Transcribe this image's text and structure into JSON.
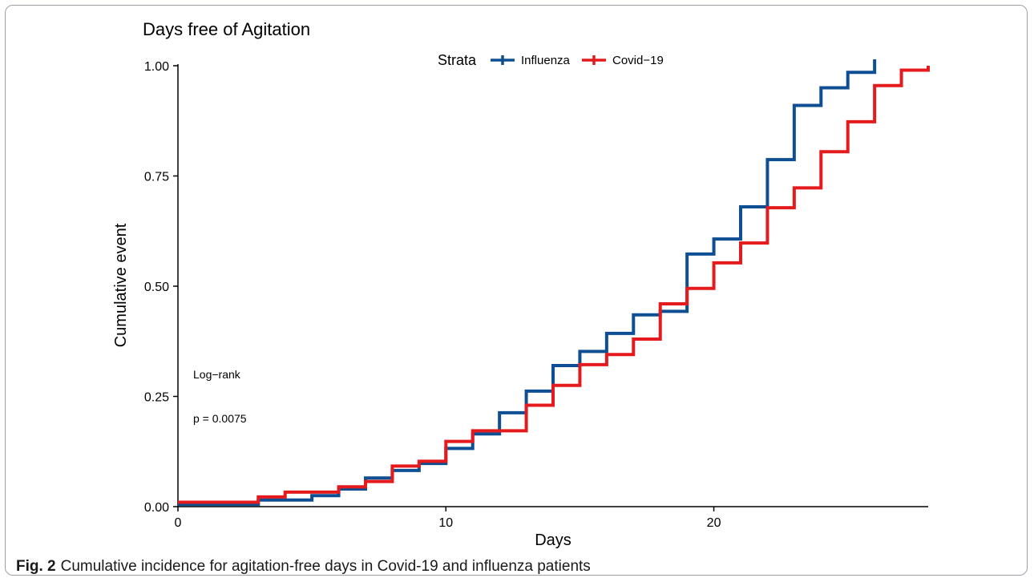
{
  "caption": {
    "label": "Fig. 2",
    "text": "Cumulative incidence for agitation-free days in Covid-19 and influenza patients"
  },
  "chart_data": {
    "type": "line",
    "step": true,
    "title": "Days free of Agitation",
    "xlabel": "Days",
    "ylabel": "Cumulative event",
    "xlim": [
      0,
      28
    ],
    "ylim": [
      0,
      1
    ],
    "x_ticks": [
      0,
      10,
      20
    ],
    "y_ticks": [
      0,
      0.25,
      0.5,
      0.75,
      1.0
    ],
    "y_tick_labels": [
      "0.00",
      "0.25",
      "0.50",
      "0.75",
      "1.00"
    ],
    "grid": false,
    "legend": {
      "title": "Strata",
      "position": "top"
    },
    "annotations": [
      "Log−rank",
      "p = 0.0075"
    ],
    "series": [
      {
        "name": "Influenza",
        "color": "#0e4f94",
        "x": [
          0,
          3,
          5,
          6,
          7,
          8,
          9,
          10,
          11,
          12,
          13,
          14,
          15,
          16,
          17,
          18,
          19,
          20,
          21,
          22,
          23,
          24,
          25,
          26
        ],
        "y": [
          0.005,
          0.015,
          0.025,
          0.04,
          0.065,
          0.082,
          0.098,
          0.132,
          0.165,
          0.213,
          0.262,
          0.32,
          0.352,
          0.393,
          0.435,
          0.443,
          0.573,
          0.607,
          0.68,
          0.787,
          0.91,
          0.95,
          0.985,
          1.0
        ]
      },
      {
        "name": "Covid−19",
        "color": "#e41a1c",
        "x": [
          0,
          3,
          4,
          6,
          7,
          8,
          9,
          10,
          11,
          13,
          14,
          15,
          16,
          17,
          18,
          19,
          20,
          21,
          22,
          23,
          24,
          25,
          26,
          27,
          28
        ],
        "y": [
          0.01,
          0.022,
          0.033,
          0.045,
          0.057,
          0.092,
          0.103,
          0.148,
          0.172,
          0.23,
          0.275,
          0.322,
          0.345,
          0.38,
          0.46,
          0.495,
          0.553,
          0.598,
          0.678,
          0.723,
          0.805,
          0.873,
          0.955,
          0.99,
          1.0
        ]
      }
    ]
  }
}
